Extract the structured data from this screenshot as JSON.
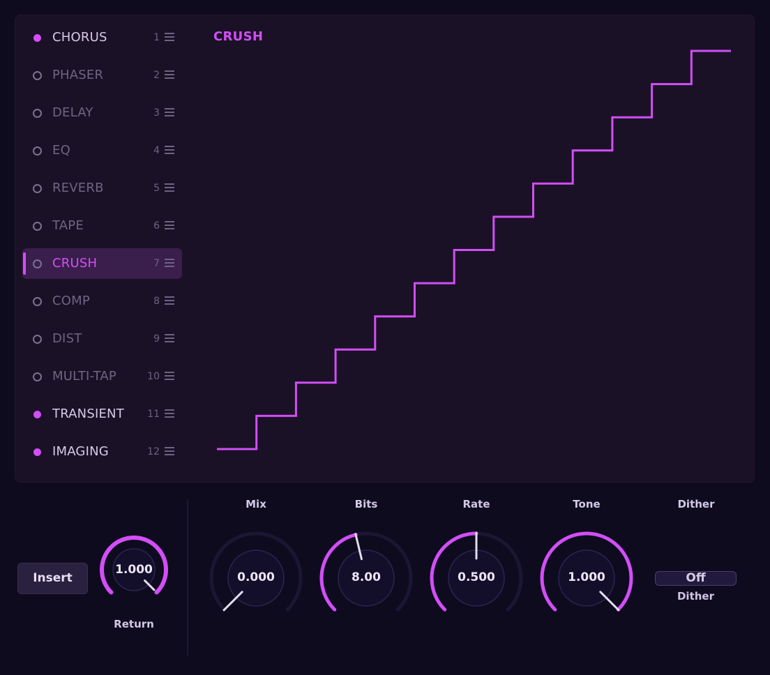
{
  "effects": [
    {
      "name": "CHORUS",
      "index": "1",
      "state": "on"
    },
    {
      "name": "PHASER",
      "index": "2",
      "state": "off"
    },
    {
      "name": "DELAY",
      "index": "3",
      "state": "off"
    },
    {
      "name": "EQ",
      "index": "4",
      "state": "off"
    },
    {
      "name": "REVERB",
      "index": "5",
      "state": "off"
    },
    {
      "name": "TAPE",
      "index": "6",
      "state": "off"
    },
    {
      "name": "CRUSH",
      "index": "7",
      "state": "selected"
    },
    {
      "name": "COMP",
      "index": "8",
      "state": "off"
    },
    {
      "name": "DIST",
      "index": "9",
      "state": "off"
    },
    {
      "name": "MULTI-TAP",
      "index": "10",
      "state": "off"
    },
    {
      "name": "TRANSIENT",
      "index": "11",
      "state": "on"
    },
    {
      "name": "IMAGING",
      "index": "12",
      "state": "on"
    }
  ],
  "display": {
    "title": "CRUSH",
    "steps": 13
  },
  "return_control": {
    "insert_label": "Insert",
    "value": "1.000",
    "label": "Return"
  },
  "knobs": [
    {
      "id": "mix",
      "label": "Mix",
      "value": "0.000",
      "level": 0.0
    },
    {
      "id": "bits",
      "label": "Bits",
      "value": "8.00",
      "level": 0.45
    },
    {
      "id": "rate",
      "label": "Rate",
      "value": "0.500",
      "level": 0.5
    },
    {
      "id": "tone",
      "label": "Tone",
      "value": "1.000",
      "level": 1.0
    }
  ],
  "dither": {
    "label": "Dither",
    "value": "Off",
    "sublabel": "Dither"
  },
  "colors": {
    "accent": "#d24ef6",
    "background": "#0e0b1f",
    "panel": "#1b1126"
  }
}
